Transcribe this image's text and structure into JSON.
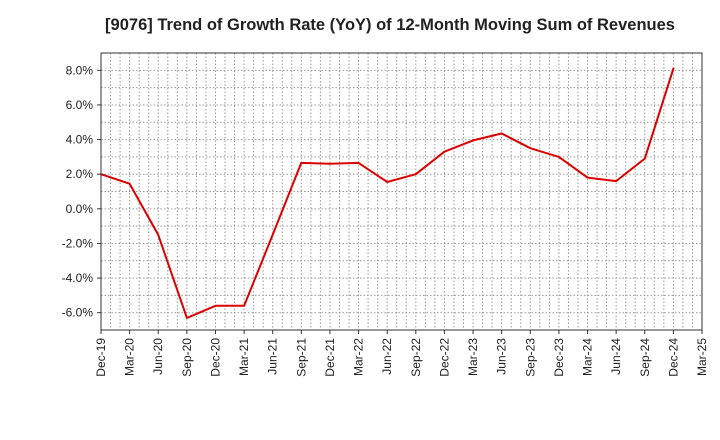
{
  "chart_data": {
    "type": "line",
    "title": "[9076]  Trend of Growth Rate (YoY) of 12-Month Moving Sum of Revenues",
    "xlabel": "",
    "ylabel": "",
    "x": [
      "Dec-19",
      "Mar-20",
      "Jun-20",
      "Sep-20",
      "Dec-20",
      "Mar-21",
      "Jun-21",
      "Sep-21",
      "Dec-21",
      "Mar-22",
      "Jun-22",
      "Sep-22",
      "Dec-22",
      "Mar-23",
      "Jun-23",
      "Sep-23",
      "Dec-23",
      "Mar-24",
      "Jun-24",
      "Sep-24",
      "Dec-24",
      "Mar-25"
    ],
    "series": [
      {
        "name": "",
        "color": "#dd0000",
        "values": [
          2.0,
          1.45,
          -1.5,
          -6.3,
          -5.6,
          -5.6,
          -1.5,
          2.65,
          2.6,
          2.65,
          1.55,
          2.0,
          3.3,
          3.95,
          4.35,
          3.5,
          3.0,
          1.8,
          1.6,
          2.9,
          8.1,
          null
        ]
      }
    ],
    "ylim": [
      -7.0,
      9.0
    ],
    "yticks": [
      -6.0,
      -4.0,
      -2.0,
      0.0,
      2.0,
      4.0,
      6.0,
      8.0
    ],
    "ytick_labels": [
      "-6.0%",
      "-4.0%",
      "-2.0%",
      "0.0%",
      "2.0%",
      "4.0%",
      "6.0%",
      "8.0%"
    ],
    "grid": true,
    "legend": "none"
  }
}
